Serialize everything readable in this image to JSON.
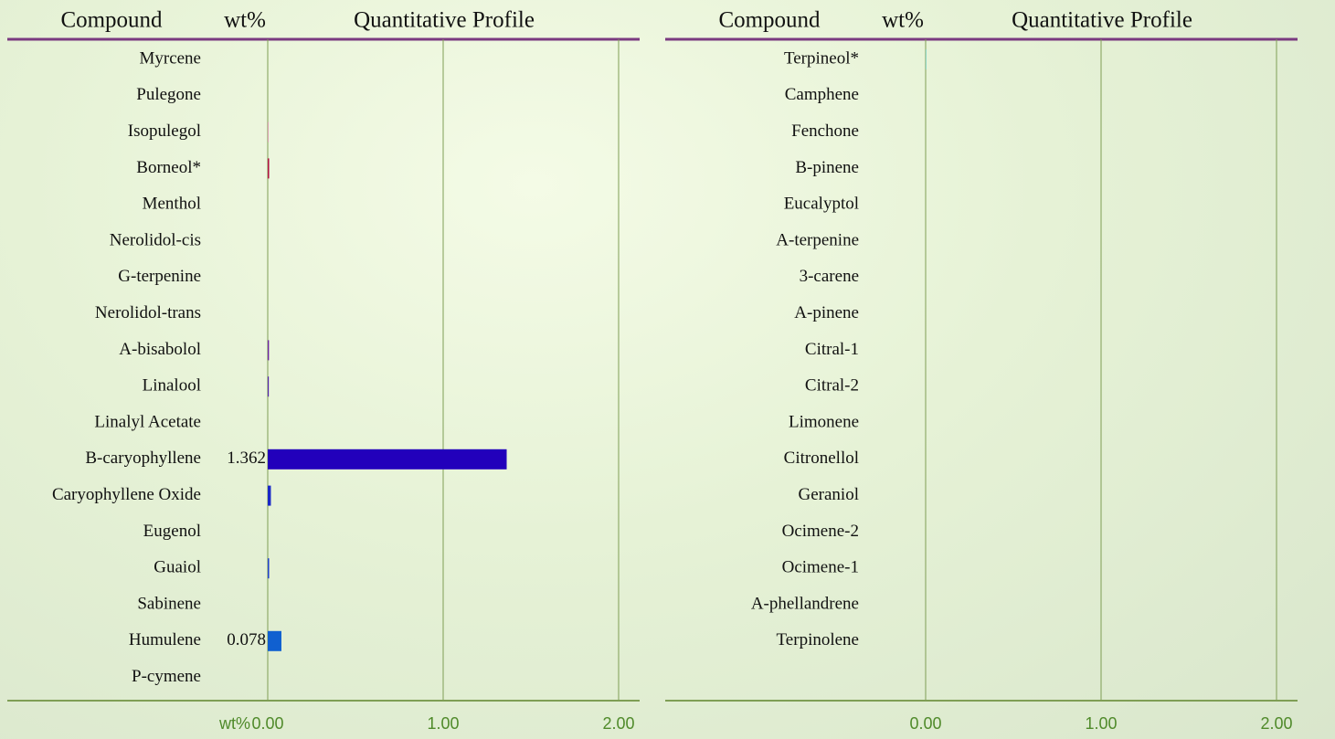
{
  "chart_data": [
    {
      "type": "bar",
      "orientation": "horizontal",
      "headers": [
        "Compound",
        "wt%",
        "Quantitative Profile"
      ],
      "x_label": "wt%",
      "categories": [
        "Myrcene",
        "Pulegone",
        "Isopulegol",
        "Borneol*",
        "Menthol",
        "Nerolidol-cis",
        "G-terpenine",
        "Nerolidol-trans",
        "A-bisabolol",
        "Linalool",
        "Linalyl Acetate",
        "B-caryophyllene",
        "Caryophyllene Oxide",
        "Eugenol",
        "Guaiol",
        "Sabinene",
        "Humulene",
        "P-cymene"
      ],
      "values": [
        0,
        0,
        0.002,
        0.008,
        0,
        0,
        0,
        0,
        0.007,
        0.006,
        0,
        1.362,
        0.018,
        0,
        0.008,
        0,
        0.078,
        0
      ],
      "value_labels": [
        null,
        null,
        null,
        null,
        null,
        null,
        null,
        null,
        null,
        null,
        null,
        "1.362",
        null,
        null,
        null,
        null,
        "0.078",
        null
      ],
      "colors": [
        null,
        null,
        "#e0309a",
        "#b01040",
        null,
        null,
        null,
        null,
        "#6a20a0",
        "#5020a8",
        null,
        "#2200bb",
        "#1a28c8",
        null,
        "#2040c8",
        null,
        "#1060d0",
        null
      ],
      "xlim": [
        0,
        2.12
      ],
      "xticks": [
        {
          "value": 0,
          "label": "0.00"
        },
        {
          "value": 1,
          "label": "1.00"
        },
        {
          "value": 2,
          "label": "2.00"
        }
      ],
      "grid": true
    },
    {
      "type": "bar",
      "orientation": "horizontal",
      "headers": [
        "Compound",
        "wt%",
        "Quantitative Profile"
      ],
      "categories": [
        "Terpineol*",
        "Camphene",
        "Fenchone",
        "B-pinene",
        "Eucalyptol",
        "A-terpenine",
        "3-carene",
        "A-pinene",
        "Citral-1",
        "Citral-2",
        "Limonene",
        "Citronellol",
        "Geraniol",
        "Ocimene-2",
        "Ocimene-1",
        "A-phellandrene",
        "Terpinolene"
      ],
      "values": [
        0.002,
        0,
        0,
        0,
        0,
        0,
        0,
        0,
        0,
        0,
        0,
        0,
        0,
        0,
        0,
        0,
        0
      ],
      "colors": [
        "#20c0d0",
        null,
        null,
        null,
        null,
        null,
        null,
        null,
        null,
        null,
        null,
        null,
        null,
        null,
        null,
        null,
        null
      ],
      "xlim": [
        0,
        2.12
      ],
      "xticks": [
        {
          "value": 0,
          "label": "0.00"
        },
        {
          "value": 1,
          "label": "1.00"
        },
        {
          "value": 2,
          "label": "2.00"
        }
      ],
      "grid": true
    }
  ]
}
